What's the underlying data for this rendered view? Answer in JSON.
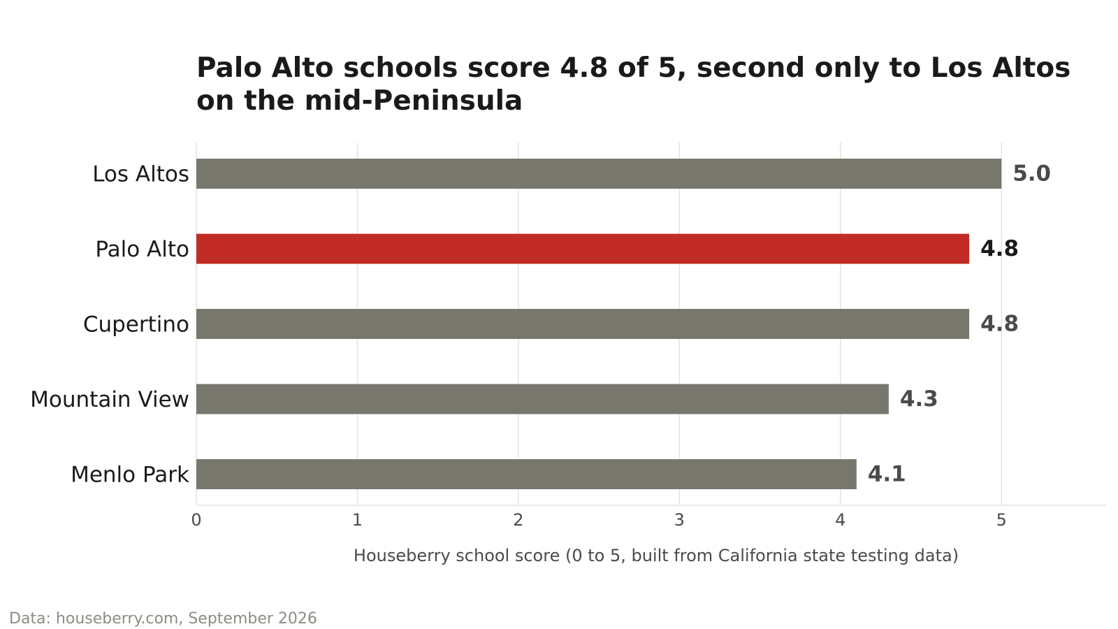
{
  "title": {
    "line1": "Palo Alto schools score 4.8 of 5, second only to Los Altos",
    "line2": "on the mid-Peninsula"
  },
  "source": "Data: houseberry.com, September 2026",
  "colors": {
    "highlight": "#c02c25",
    "default_bar": "#78776e",
    "grid": "#e3e3e0",
    "axis_text": "#4a4a4a",
    "label_text": "#1a1a1a",
    "value_text": "#4a4a4a",
    "highlight_value_text": "#1a1a1a"
  },
  "chart_data": {
    "type": "bar",
    "orientation": "horizontal",
    "categories": [
      "Los Altos",
      "Palo Alto",
      "Cupertino",
      "Mountain View",
      "Menlo Park"
    ],
    "values": [
      5.0,
      4.8,
      4.8,
      4.3,
      4.1
    ],
    "value_labels": [
      "5.0",
      "4.8",
      "4.8",
      "4.3",
      "4.1"
    ],
    "highlight": "Palo Alto",
    "title": "Palo Alto schools score 4.8 of 5, second only to Los Altos on the mid-Peninsula",
    "xlabel": "Houseberry school score (0 to 5, built from California state testing data)",
    "ylabel": "",
    "xlim": [
      0,
      5.65
    ],
    "xticks": [
      0,
      1,
      2,
      3,
      4,
      5
    ],
    "xtick_labels": [
      "0",
      "1",
      "2",
      "3",
      "4",
      "5"
    ],
    "grid": "vertical",
    "legend": "none"
  }
}
